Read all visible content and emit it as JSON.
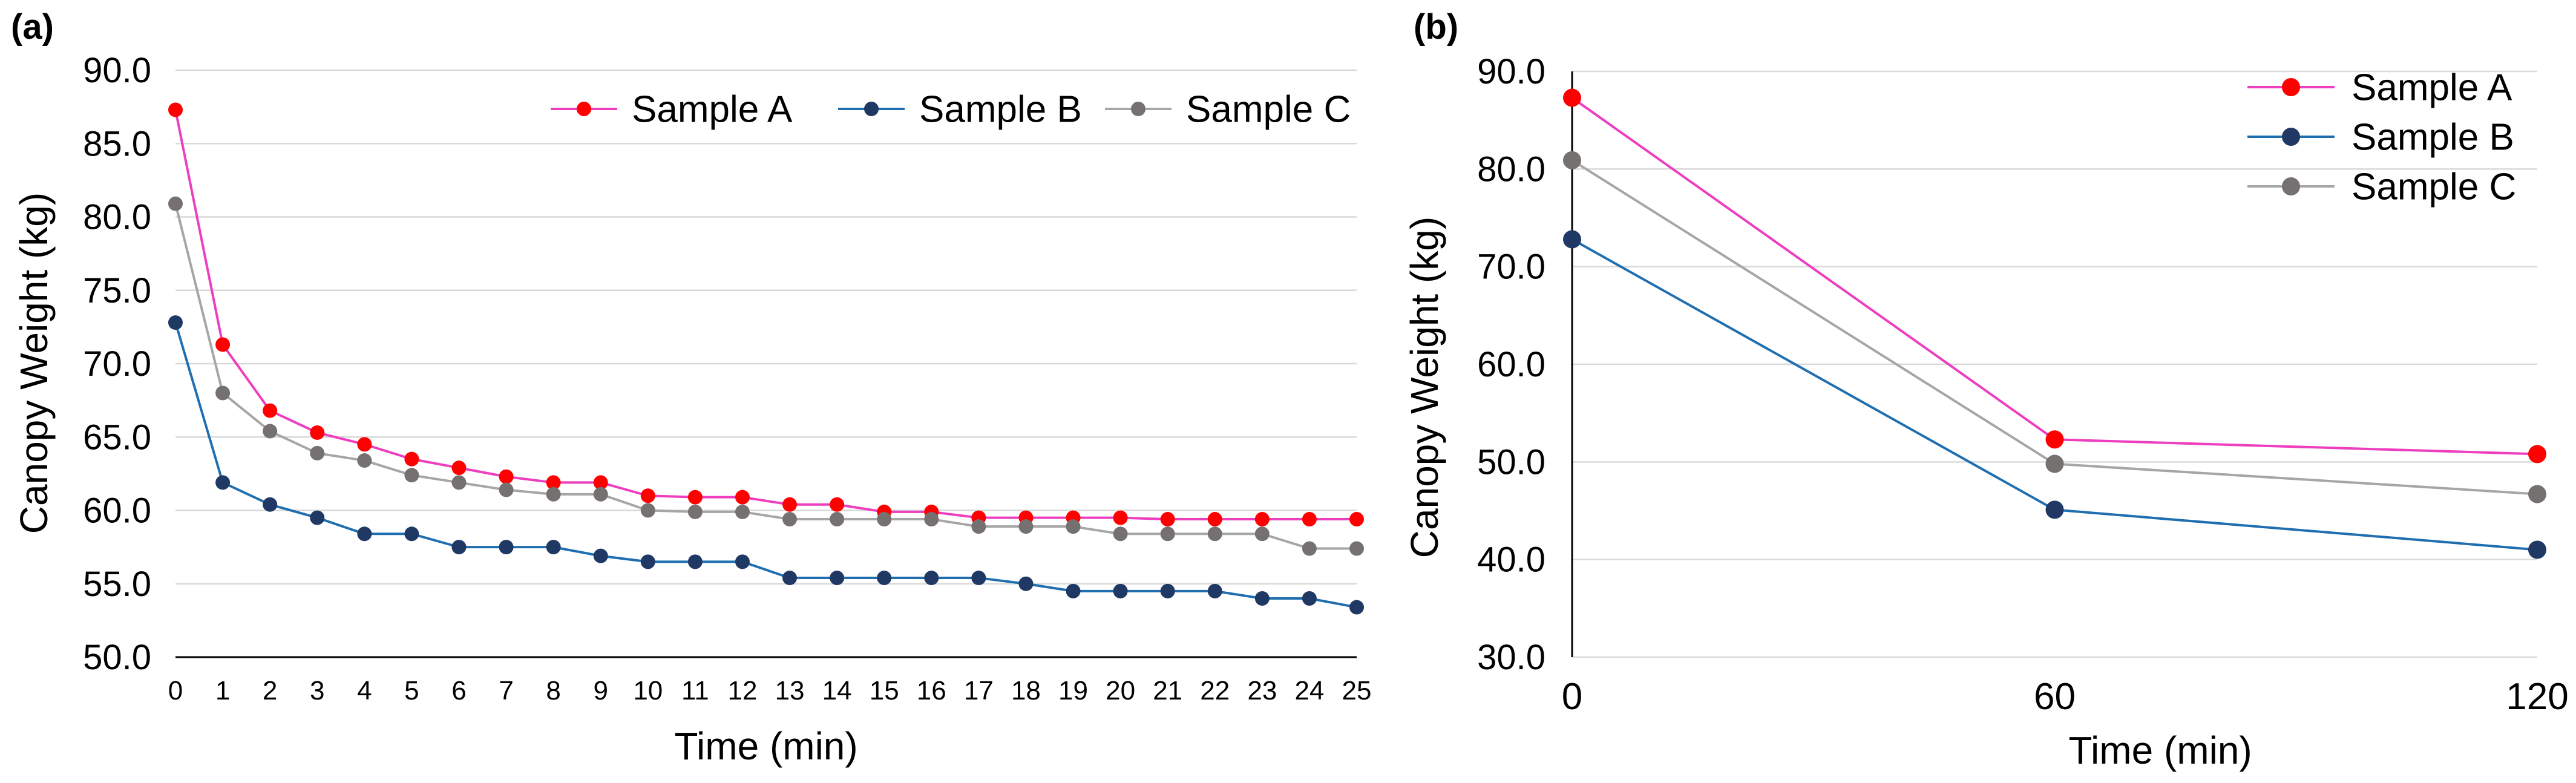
{
  "chart_data": [
    {
      "panel_label": "(a)",
      "type": "line",
      "xlabel": "Time (min)",
      "ylabel": "Canopy Weight (kg)",
      "ylim": [
        50.0,
        90.0
      ],
      "yticks": [
        "90.0",
        "85.0",
        "80.0",
        "75.0",
        "70.0",
        "65.0",
        "60.0",
        "55.0",
        "50.0"
      ],
      "x": [
        0,
        1,
        2,
        3,
        4,
        5,
        6,
        7,
        8,
        9,
        10,
        11,
        12,
        13,
        14,
        15,
        16,
        17,
        18,
        19,
        20,
        21,
        22,
        23,
        24,
        25
      ],
      "grid": "horizontal",
      "legend_position": "top-right",
      "series": [
        {
          "name": "Sample A",
          "line_color": "#ee3ec0",
          "marker_color": "#ff0000",
          "values": [
            87.3,
            71.3,
            66.8,
            65.3,
            64.5,
            63.5,
            62.9,
            62.3,
            61.9,
            61.9,
            61.0,
            60.9,
            60.9,
            60.4,
            60.4,
            59.9,
            59.9,
            59.5,
            59.5,
            59.5,
            59.5,
            59.4,
            59.4,
            59.4,
            59.4,
            59.4
          ]
        },
        {
          "name": "Sample B",
          "line_color": "#1f6eb0",
          "marker_color": "#1f3864",
          "values": [
            72.8,
            61.9,
            60.4,
            59.5,
            58.4,
            58.4,
            57.5,
            57.5,
            57.5,
            56.9,
            56.5,
            56.5,
            56.5,
            55.4,
            55.4,
            55.4,
            55.4,
            55.4,
            55.0,
            54.5,
            54.5,
            54.5,
            54.5,
            54.0,
            54.0,
            53.4
          ]
        },
        {
          "name": "Sample C",
          "line_color": "#a6a6a6",
          "marker_color": "#767171",
          "values": [
            80.9,
            68.0,
            65.4,
            63.9,
            63.4,
            62.4,
            61.9,
            61.4,
            61.1,
            61.1,
            60.0,
            59.9,
            59.9,
            59.4,
            59.4,
            59.4,
            59.4,
            58.9,
            58.9,
            58.9,
            58.4,
            58.4,
            58.4,
            58.4,
            57.4,
            57.4
          ]
        }
      ]
    },
    {
      "panel_label": "(b)",
      "type": "line",
      "xlabel": "Time (min)",
      "ylabel": "Canopy Weight (kg)",
      "ylim": [
        30.0,
        90.0
      ],
      "yticks": [
        "90.0",
        "80.0",
        "70.0",
        "60.0",
        "50.0",
        "40.0",
        "30.0"
      ],
      "x": [
        0,
        60,
        120
      ],
      "grid": "horizontal",
      "legend_position": "top-right",
      "series": [
        {
          "name": "Sample A",
          "line_color": "#ee3ec0",
          "marker_color": "#ff0000",
          "values": [
            87.3,
            52.3,
            50.8
          ]
        },
        {
          "name": "Sample B",
          "line_color": "#1f6eb0",
          "marker_color": "#1f3864",
          "values": [
            72.8,
            45.1,
            41.0
          ]
        },
        {
          "name": "Sample C",
          "line_color": "#a6a6a6",
          "marker_color": "#767171",
          "values": [
            80.9,
            49.8,
            46.7
          ]
        }
      ]
    }
  ]
}
